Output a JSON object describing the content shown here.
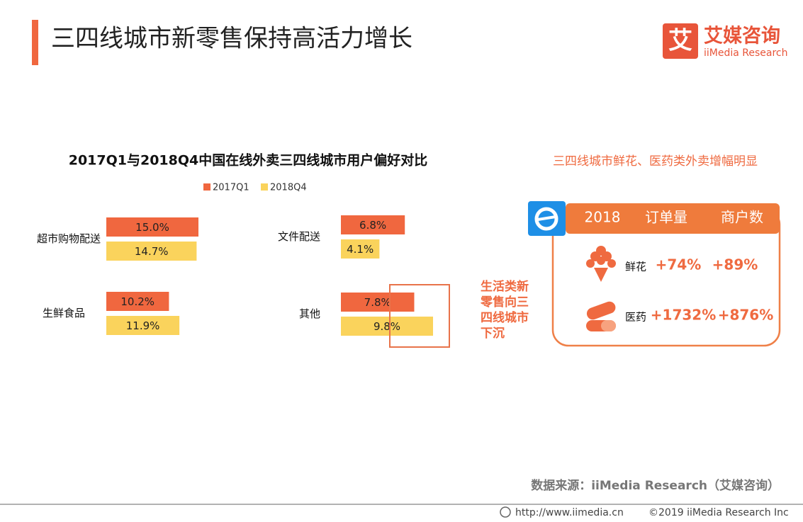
{
  "header": {
    "title": "三四线城市新零售保持高活力增长"
  },
  "logo": {
    "mark": "艾",
    "cn": "艾媒咨询",
    "en": "iiMedia Research"
  },
  "chart_data": {
    "type": "bar",
    "title": "2017Q1与2018Q4中国在线外卖三四线城市用户偏好对比",
    "categories": [
      "超市购物配送",
      "生鲜食品",
      "文件配送",
      "其他"
    ],
    "series": [
      {
        "name": "2017Q1",
        "color": "#f0673f",
        "values": [
          15.0,
          10.2,
          6.8,
          7.8
        ],
        "value_labels": [
          "15.0%",
          "10.2%",
          "6.8%",
          "7.8%"
        ]
      },
      {
        "name": "2018Q4",
        "color": "#fad35c",
        "values": [
          14.7,
          11.9,
          4.1,
          9.8
        ],
        "value_labels": [
          "14.7%",
          "11.9%",
          "4.1%",
          "9.8%"
        ]
      }
    ]
  },
  "annotation": [
    "生活类新",
    "零售向三",
    "四线城市",
    "下沉"
  ],
  "side_panel": {
    "title": "三四线城市鲜花、医药类外卖增幅明显",
    "table": {
      "header": [
        "2018",
        "订单量",
        "商户数"
      ],
      "rows": [
        [
          "鲜花",
          "+74%",
          "+89%"
        ],
        [
          "医药",
          "+1732%",
          "+876%"
        ]
      ]
    }
  },
  "footer": {
    "source": "数据来源：iiMedia Research（艾媒咨询）",
    "url": "http://www.iimedia.cn",
    "copyright": "©2019  iiMedia Research  Inc"
  }
}
